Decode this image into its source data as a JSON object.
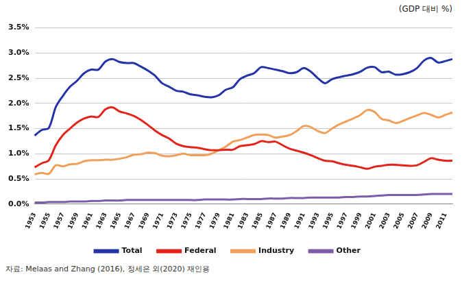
{
  "chart_data": {
    "type": "line",
    "unit_label": "(GDP 대비 %)",
    "source": "자료: Melaas and Zhang (2016), 정세은 외(2020) 재인용",
    "categories": [
      "1953",
      null,
      "1955",
      null,
      "1957",
      null,
      "1959",
      null,
      "1961",
      null,
      "1963",
      null,
      "1965",
      null,
      "1967",
      null,
      "1969",
      null,
      "1971",
      null,
      "1973",
      null,
      "1975",
      null,
      "1977",
      null,
      "1979",
      null,
      "1981",
      null,
      "1983",
      null,
      "1985",
      null,
      "1987",
      null,
      "1989",
      null,
      "1991",
      null,
      "1993",
      null,
      "1995",
      null,
      "1997",
      null,
      "1999",
      null,
      "2001",
      null,
      "2003",
      null,
      "2005",
      null,
      "2007",
      null,
      "2009",
      null,
      "2011",
      null
    ],
    "series": [
      {
        "name": "Total",
        "color": "#2433a6",
        "values": [
          1.36,
          1.47,
          1.51,
          1.93,
          2.15,
          2.33,
          2.45,
          2.6,
          2.67,
          2.67,
          2.83,
          2.88,
          2.82,
          2.8,
          2.8,
          2.73,
          2.65,
          2.55,
          2.4,
          2.33,
          2.25,
          2.23,
          2.18,
          2.16,
          2.13,
          2.12,
          2.16,
          2.27,
          2.32,
          2.48,
          2.55,
          2.6,
          2.72,
          2.7,
          2.67,
          2.64,
          2.6,
          2.62,
          2.7,
          2.63,
          2.5,
          2.4,
          2.48,
          2.52,
          2.55,
          2.58,
          2.63,
          2.71,
          2.72,
          2.62,
          2.63,
          2.57,
          2.58,
          2.62,
          2.7,
          2.85,
          2.9,
          2.81,
          2.84,
          2.88
        ]
      },
      {
        "name": "Federal",
        "color": "#e3241b",
        "values": [
          0.73,
          0.81,
          0.87,
          1.17,
          1.37,
          1.5,
          1.62,
          1.7,
          1.74,
          1.73,
          1.88,
          1.92,
          1.84,
          1.8,
          1.75,
          1.67,
          1.57,
          1.46,
          1.37,
          1.3,
          1.2,
          1.15,
          1.13,
          1.12,
          1.09,
          1.07,
          1.07,
          1.08,
          1.08,
          1.15,
          1.17,
          1.19,
          1.25,
          1.23,
          1.24,
          1.17,
          1.1,
          1.06,
          1.02,
          0.97,
          0.91,
          0.86,
          0.85,
          0.81,
          0.78,
          0.76,
          0.73,
          0.7,
          0.74,
          0.76,
          0.78,
          0.78,
          0.77,
          0.76,
          0.77,
          0.84,
          0.91,
          0.88,
          0.86,
          0.86
        ]
      },
      {
        "name": "Industry",
        "color": "#f0a05a",
        "values": [
          0.59,
          0.62,
          0.6,
          0.77,
          0.75,
          0.79,
          0.8,
          0.85,
          0.87,
          0.87,
          0.88,
          0.88,
          0.9,
          0.93,
          0.98,
          0.99,
          1.02,
          1.01,
          0.96,
          0.95,
          0.97,
          1.0,
          0.97,
          0.97,
          0.97,
          1.0,
          1.07,
          1.14,
          1.24,
          1.27,
          1.32,
          1.37,
          1.38,
          1.37,
          1.32,
          1.34,
          1.37,
          1.45,
          1.55,
          1.53,
          1.45,
          1.41,
          1.5,
          1.58,
          1.64,
          1.7,
          1.77,
          1.87,
          1.83,
          1.69,
          1.66,
          1.61,
          1.65,
          1.71,
          1.76,
          1.81,
          1.77,
          1.72,
          1.77,
          1.82
        ]
      },
      {
        "name": "Other",
        "color": "#7d5ca8",
        "values": [
          0.03,
          0.03,
          0.04,
          0.04,
          0.04,
          0.05,
          0.05,
          0.05,
          0.06,
          0.06,
          0.07,
          0.07,
          0.07,
          0.08,
          0.08,
          0.08,
          0.08,
          0.08,
          0.08,
          0.08,
          0.08,
          0.08,
          0.08,
          0.08,
          0.09,
          0.09,
          0.09,
          0.09,
          0.09,
          0.1,
          0.1,
          0.1,
          0.1,
          0.11,
          0.11,
          0.11,
          0.12,
          0.12,
          0.12,
          0.13,
          0.13,
          0.13,
          0.13,
          0.13,
          0.14,
          0.14,
          0.15,
          0.15,
          0.16,
          0.17,
          0.18,
          0.18,
          0.18,
          0.18,
          0.18,
          0.19,
          0.2,
          0.2,
          0.2,
          0.2
        ]
      }
    ],
    "ylim": [
      0,
      3.5
    ],
    "yticks": [
      {
        "value": 0,
        "label": "0.0%"
      },
      {
        "value": 0.5,
        "label": "0.5%"
      },
      {
        "value": 1,
        "label": "1.0%"
      },
      {
        "value": 1.5,
        "label": "1.5%"
      },
      {
        "value": 2,
        "label": "2.0%"
      },
      {
        "value": 2.5,
        "label": "2.5%"
      },
      {
        "value": 3,
        "label": "3.0%"
      },
      {
        "value": 3.5,
        "label": "3.5%"
      }
    ],
    "grid": true,
    "legend": "bottom"
  }
}
